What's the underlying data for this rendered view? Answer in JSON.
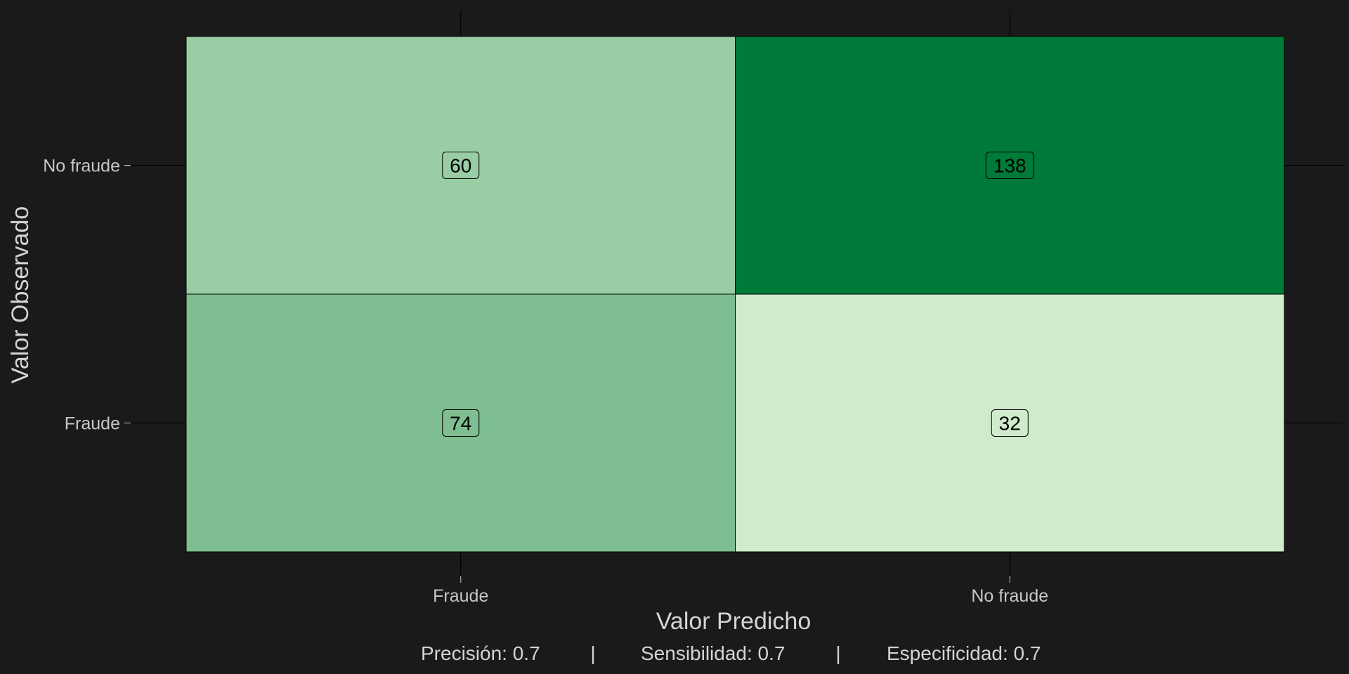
{
  "chart_data": {
    "type": "heatmap",
    "title": "",
    "xlabel": "Valor Predicho",
    "ylabel": "Valor Observado",
    "x_categories": [
      "Fraude",
      "No fraude"
    ],
    "y_categories": [
      "Fraude",
      "No fraude"
    ],
    "cells": [
      {
        "observed": "No fraude",
        "predicted": "Fraude",
        "value": 60
      },
      {
        "observed": "No fraude",
        "predicted": "No fraude",
        "value": 138
      },
      {
        "observed": "Fraude",
        "predicted": "Fraude",
        "value": 74
      },
      {
        "observed": "Fraude",
        "predicted": "No fraude",
        "value": 32
      }
    ],
    "color_scale": {
      "low": "#d0ebcb",
      "high": "#007a38"
    },
    "metrics": [
      {
        "label": "Precisión: 0.7"
      },
      {
        "label": "Sensibilidad: 0.7"
      },
      {
        "label": "Especificidad: 0.7"
      }
    ],
    "metric_separator": "|",
    "grid": true,
    "legend": "none"
  },
  "colors": {
    "background": "#1a1a1a",
    "gridline": "#000000",
    "text": "#c8c8c8"
  }
}
